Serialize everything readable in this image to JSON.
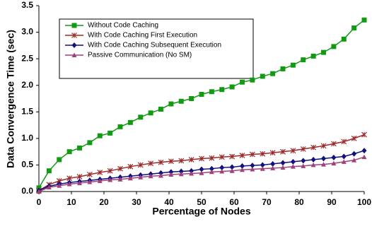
{
  "chart_data": {
    "type": "line",
    "xlabel": "Percentage of Nodes",
    "ylabel": "Data Convergence Time (sec)",
    "x": [
      0,
      3.125,
      6.25,
      9.375,
      12.5,
      15.625,
      18.75,
      21.875,
      25,
      28.125,
      31.25,
      34.375,
      37.5,
      40.625,
      43.75,
      46.875,
      50,
      53.125,
      56.25,
      59.375,
      62.5,
      65.625,
      68.75,
      71.875,
      75,
      78.125,
      81.25,
      84.375,
      87.5,
      90.625,
      93.75,
      96.875,
      100
    ],
    "series": [
      {
        "name": "Without Code Caching",
        "color": "#129a12",
        "marker": "square",
        "values": [
          0.07,
          0.39,
          0.6,
          0.75,
          0.82,
          0.92,
          1.05,
          1.1,
          1.22,
          1.3,
          1.4,
          1.48,
          1.55,
          1.65,
          1.7,
          1.75,
          1.83,
          1.88,
          1.92,
          1.97,
          2.06,
          2.1,
          2.17,
          2.22,
          2.31,
          2.38,
          2.48,
          2.55,
          2.62,
          2.73,
          2.87,
          3.08,
          3.23
        ]
      },
      {
        "name": "With Code Caching First Execution",
        "color": "#9c2a2a",
        "marker": "x",
        "values": [
          0.02,
          0.13,
          0.2,
          0.25,
          0.28,
          0.32,
          0.36,
          0.39,
          0.43,
          0.47,
          0.5,
          0.53,
          0.55,
          0.57,
          0.58,
          0.6,
          0.62,
          0.63,
          0.65,
          0.66,
          0.68,
          0.7,
          0.71,
          0.73,
          0.75,
          0.77,
          0.8,
          0.83,
          0.86,
          0.9,
          0.94,
          1.0,
          1.07
        ]
      },
      {
        "name": "With Code Caching Subsequent Execution",
        "color": "#101080",
        "marker": "diamond",
        "values": [
          0.02,
          0.1,
          0.14,
          0.17,
          0.19,
          0.21,
          0.23,
          0.25,
          0.27,
          0.29,
          0.31,
          0.33,
          0.35,
          0.37,
          0.38,
          0.39,
          0.42,
          0.43,
          0.45,
          0.46,
          0.48,
          0.49,
          0.5,
          0.52,
          0.54,
          0.56,
          0.58,
          0.6,
          0.62,
          0.64,
          0.66,
          0.71,
          0.77
        ]
      },
      {
        "name": "Passive Communication (No SM)",
        "color": "#a0407a",
        "marker": "triangle",
        "values": [
          0.0,
          0.08,
          0.11,
          0.14,
          0.16,
          0.18,
          0.2,
          0.22,
          0.23,
          0.25,
          0.27,
          0.29,
          0.3,
          0.32,
          0.33,
          0.34,
          0.35,
          0.37,
          0.38,
          0.39,
          0.41,
          0.42,
          0.43,
          0.44,
          0.45,
          0.47,
          0.48,
          0.5,
          0.51,
          0.53,
          0.56,
          0.59,
          0.65
        ]
      }
    ],
    "xlim": [
      0,
      100
    ],
    "xticks": [
      0,
      10,
      20,
      30,
      40,
      50,
      60,
      70,
      80,
      90,
      100
    ],
    "ylim": [
      0,
      3.5
    ],
    "yticks": [
      {
        "value": 0,
        "label": "0.0"
      },
      {
        "value": 0.5,
        "label": "0.5"
      },
      {
        "value": 1,
        "label": "1.0"
      },
      {
        "value": 1.5,
        "label": "1.5"
      },
      {
        "value": 2,
        "label": "2.0"
      },
      {
        "value": 2.5,
        "label": "2.5"
      },
      {
        "value": 3,
        "label": "3.0"
      },
      {
        "value": 3.5,
        "label": "3.5"
      }
    ],
    "legend": "top-left"
  }
}
